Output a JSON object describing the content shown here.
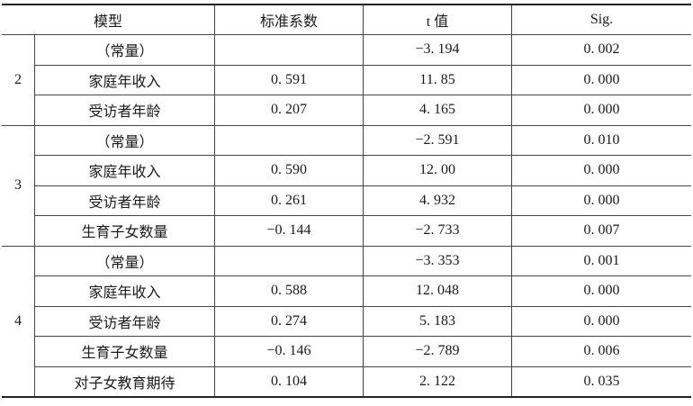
{
  "header": [
    "模型",
    "标准系数",
    "t 值",
    "Sig."
  ],
  "groups": [
    {
      "model": "2",
      "rows": [
        {
          "var": "（常量）",
          "beta": "",
          "t": "−3. 194",
          "sig": "0. 002"
        },
        {
          "var": "家庭年收入",
          "beta": "0. 591",
          "t": "11. 85",
          "sig": "0. 000"
        },
        {
          "var": "受访者年龄",
          "beta": "0. 207",
          "t": "4. 165",
          "sig": "0. 000"
        }
      ]
    },
    {
      "model": "3",
      "rows": [
        {
          "var": "（常量）",
          "beta": "",
          "t": "−2. 591",
          "sig": "0. 010"
        },
        {
          "var": "家庭年收入",
          "beta": "0. 590",
          "t": "12. 00",
          "sig": "0. 000"
        },
        {
          "var": "受访者年龄",
          "beta": "0. 261",
          "t": "4. 932",
          "sig": "0. 000"
        },
        {
          "var": "生育子女数量",
          "beta": "−0. 144",
          "t": "−2. 733",
          "sig": "0. 007"
        }
      ]
    },
    {
      "model": "4",
      "rows": [
        {
          "var": "（常量）",
          "beta": "",
          "t": "−3. 353",
          "sig": "0. 001"
        },
        {
          "var": "家庭年收入",
          "beta": "0. 588",
          "t": "12. 048",
          "sig": "0. 000"
        },
        {
          "var": "受访者年龄",
          "beta": "0. 274",
          "t": "5. 183",
          "sig": "0. 000"
        },
        {
          "var": "生育子女数量",
          "beta": "−0. 146",
          "t": "−2. 789",
          "sig": "0. 006"
        },
        {
          "var": "对子女教育期待",
          "beta": "0. 104",
          "t": "2. 122",
          "sig": "0. 035"
        }
      ]
    }
  ]
}
